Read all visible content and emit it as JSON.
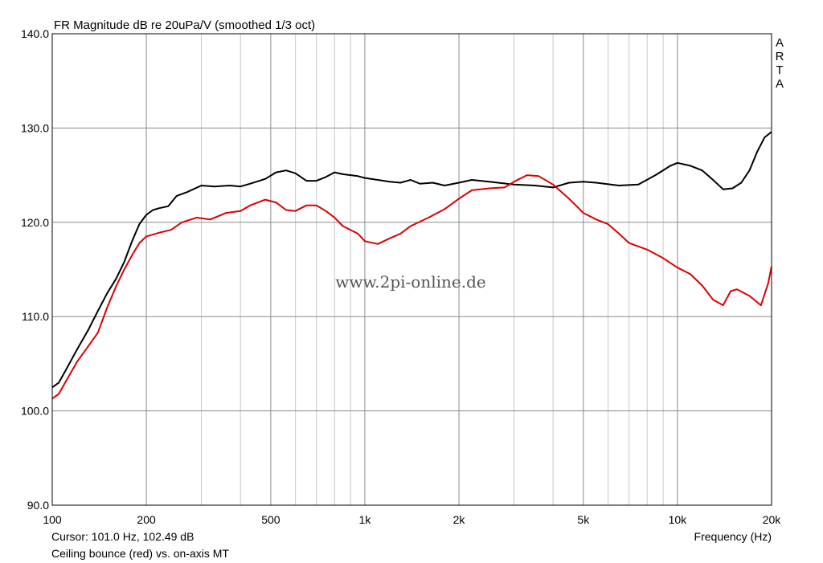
{
  "chart_data": {
    "type": "line",
    "title": "FR Magnitude dB re 20uPa/V (smoothed 1/3 oct)",
    "xlabel": "Frequency (Hz)",
    "ylabel": "",
    "x_scale": "log",
    "xlim": [
      100,
      20000
    ],
    "ylim": [
      90,
      140
    ],
    "x_ticks": [
      {
        "value": 100,
        "label": "100"
      },
      {
        "value": 200,
        "label": "200"
      },
      {
        "value": 500,
        "label": "500"
      },
      {
        "value": 1000,
        "label": "1k"
      },
      {
        "value": 2000,
        "label": "2k"
      },
      {
        "value": 5000,
        "label": "5k"
      },
      {
        "value": 10000,
        "label": "10k"
      },
      {
        "value": 20000,
        "label": "20k"
      }
    ],
    "y_ticks": [
      {
        "value": 90,
        "label": "90.0"
      },
      {
        "value": 100,
        "label": "100.0"
      },
      {
        "value": 110,
        "label": "110.0"
      },
      {
        "value": 120,
        "label": "120.0"
      },
      {
        "value": 130,
        "label": "130.0"
      },
      {
        "value": 140,
        "label": "140.0"
      }
    ],
    "grid": true,
    "background": "#ffffff",
    "series": [
      {
        "color": "#000000",
        "points": [
          [
            100,
            102.5
          ],
          [
            105,
            103.0
          ],
          [
            110,
            104.2
          ],
          [
            120,
            106.5
          ],
          [
            130,
            108.5
          ],
          [
            140,
            110.6
          ],
          [
            150,
            112.5
          ],
          [
            160,
            114.0
          ],
          [
            170,
            115.8
          ],
          [
            180,
            118.0
          ],
          [
            190,
            119.8
          ],
          [
            200,
            120.8
          ],
          [
            210,
            121.3
          ],
          [
            220,
            121.5
          ],
          [
            235,
            121.7
          ],
          [
            250,
            122.8
          ],
          [
            270,
            123.2
          ],
          [
            300,
            123.9
          ],
          [
            330,
            123.8
          ],
          [
            370,
            123.9
          ],
          [
            400,
            123.8
          ],
          [
            430,
            124.1
          ],
          [
            480,
            124.6
          ],
          [
            520,
            125.3
          ],
          [
            560,
            125.5
          ],
          [
            600,
            125.2
          ],
          [
            650,
            124.4
          ],
          [
            700,
            124.4
          ],
          [
            750,
            124.8
          ],
          [
            800,
            125.3
          ],
          [
            850,
            125.1
          ],
          [
            950,
            124.9
          ],
          [
            1000,
            124.7
          ],
          [
            1100,
            124.5
          ],
          [
            1200,
            124.3
          ],
          [
            1300,
            124.2
          ],
          [
            1400,
            124.5
          ],
          [
            1500,
            124.1
          ],
          [
            1650,
            124.2
          ],
          [
            1800,
            123.9
          ],
          [
            2000,
            124.2
          ],
          [
            2200,
            124.5
          ],
          [
            2500,
            124.3
          ],
          [
            3000,
            124.0
          ],
          [
            3500,
            123.9
          ],
          [
            4000,
            123.7
          ],
          [
            4500,
            124.2
          ],
          [
            5000,
            124.3
          ],
          [
            5500,
            124.2
          ],
          [
            6500,
            123.9
          ],
          [
            7500,
            124.0
          ],
          [
            8500,
            125.0
          ],
          [
            9500,
            126.0
          ],
          [
            10000,
            126.3
          ],
          [
            11000,
            126.0
          ],
          [
            12000,
            125.5
          ],
          [
            13000,
            124.5
          ],
          [
            14000,
            123.5
          ],
          [
            15000,
            123.6
          ],
          [
            16000,
            124.2
          ],
          [
            17000,
            125.5
          ],
          [
            18000,
            127.5
          ],
          [
            19000,
            129.0
          ],
          [
            20000,
            129.6
          ]
        ]
      },
      {
        "color": "#dd0000",
        "points": [
          [
            100,
            101.3
          ],
          [
            105,
            101.8
          ],
          [
            110,
            103.0
          ],
          [
            120,
            105.2
          ],
          [
            130,
            106.8
          ],
          [
            140,
            108.3
          ],
          [
            150,
            111.0
          ],
          [
            160,
            113.2
          ],
          [
            170,
            115.0
          ],
          [
            180,
            116.5
          ],
          [
            190,
            117.8
          ],
          [
            200,
            118.5
          ],
          [
            220,
            118.9
          ],
          [
            240,
            119.2
          ],
          [
            260,
            120.0
          ],
          [
            290,
            120.5
          ],
          [
            320,
            120.3
          ],
          [
            360,
            121.0
          ],
          [
            400,
            121.2
          ],
          [
            430,
            121.8
          ],
          [
            480,
            122.4
          ],
          [
            520,
            122.1
          ],
          [
            560,
            121.3
          ],
          [
            600,
            121.2
          ],
          [
            650,
            121.8
          ],
          [
            700,
            121.8
          ],
          [
            750,
            121.2
          ],
          [
            800,
            120.5
          ],
          [
            850,
            119.6
          ],
          [
            950,
            118.8
          ],
          [
            1000,
            118.0
          ],
          [
            1100,
            117.7
          ],
          [
            1200,
            118.3
          ],
          [
            1300,
            118.8
          ],
          [
            1400,
            119.6
          ],
          [
            1600,
            120.5
          ],
          [
            1800,
            121.4
          ],
          [
            2000,
            122.5
          ],
          [
            2200,
            123.4
          ],
          [
            2500,
            123.6
          ],
          [
            2800,
            123.7
          ],
          [
            3000,
            124.3
          ],
          [
            3300,
            125.0
          ],
          [
            3600,
            124.9
          ],
          [
            4000,
            124.0
          ],
          [
            4500,
            122.5
          ],
          [
            5000,
            121.0
          ],
          [
            5500,
            120.3
          ],
          [
            6000,
            119.8
          ],
          [
            6500,
            118.8
          ],
          [
            7000,
            117.8
          ],
          [
            8000,
            117.1
          ],
          [
            9000,
            116.2
          ],
          [
            10000,
            115.2
          ],
          [
            11000,
            114.5
          ],
          [
            12000,
            113.3
          ],
          [
            13000,
            111.8
          ],
          [
            14000,
            111.2
          ],
          [
            14800,
            112.7
          ],
          [
            15500,
            112.9
          ],
          [
            17000,
            112.2
          ],
          [
            18500,
            111.2
          ],
          [
            19500,
            113.5
          ],
          [
            20000,
            115.3
          ]
        ]
      }
    ],
    "watermark": "www.2pi-online.de",
    "brand": [
      "A",
      "R",
      "T",
      "A"
    ],
    "cursor_text": "Cursor: 101.0 Hz, 102.49 dB",
    "caption": "Ceiling bounce (red) vs. on-axis MT",
    "axis_color": "#000000",
    "minor_grid_color": "#c8c8c8",
    "major_grid_color": "#8a8a8a"
  }
}
